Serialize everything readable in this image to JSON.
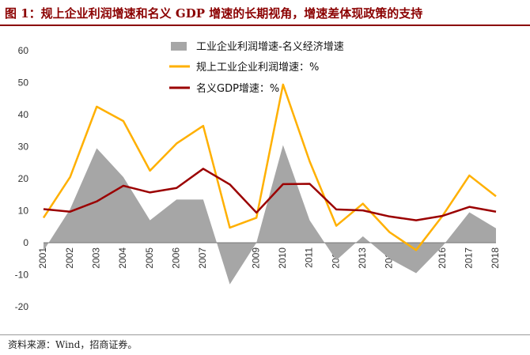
{
  "header": {
    "title": "图 1：规上企业利润增速和名义 GDP 增速的长期视角，增速差体现政策的支持"
  },
  "footer": {
    "source": "资料来源：Wind，招商证券。"
  },
  "colors": {
    "area": "#a6a6a6",
    "industrial": "#ffb000",
    "gdp": "#9b0000",
    "title": "#8b0000"
  },
  "chart_data": {
    "type": "line",
    "title": "",
    "xlabel": "",
    "ylabel": "",
    "ylim": [
      -20,
      60
    ],
    "yticks": [
      "-20",
      "-10",
      "0",
      "10",
      "20",
      "30",
      "40",
      "50",
      "60"
    ],
    "categories": [
      "2001",
      "2002",
      "2003",
      "2004",
      "2005",
      "2006",
      "2007",
      "2008",
      "2009",
      "2010",
      "2011",
      "2012",
      "2013",
      "2014",
      "2015",
      "2016",
      "2017",
      "2018"
    ],
    "series": [
      {
        "name": "工业企业利润增速-名义经济增速",
        "type": "area",
        "values": [
          -2.5,
          10.5,
          29.5,
          20.5,
          7,
          13.5,
          13.5,
          -13,
          0,
          30.5,
          7,
          -5.5,
          2,
          -5,
          -9.5,
          -1,
          9.5,
          4.5
        ]
      },
      {
        "name": "规上工业企业利润增速：%",
        "type": "line",
        "values": [
          7.8,
          20.5,
          42.5,
          38,
          22.5,
          31,
          36.5,
          4.7,
          7.8,
          49.4,
          25.4,
          5.3,
          12.2,
          3.3,
          -2.3,
          8.5,
          21,
          14.5
        ]
      },
      {
        "name": "名义GDP增速：%",
        "type": "line",
        "values": [
          10.5,
          9.7,
          12.9,
          17.8,
          15.7,
          17.1,
          23.1,
          18.2,
          9.4,
          18.3,
          18.4,
          10.4,
          10.1,
          8.2,
          7,
          8.4,
          11.2,
          9.7
        ]
      }
    ],
    "legend": "top"
  }
}
